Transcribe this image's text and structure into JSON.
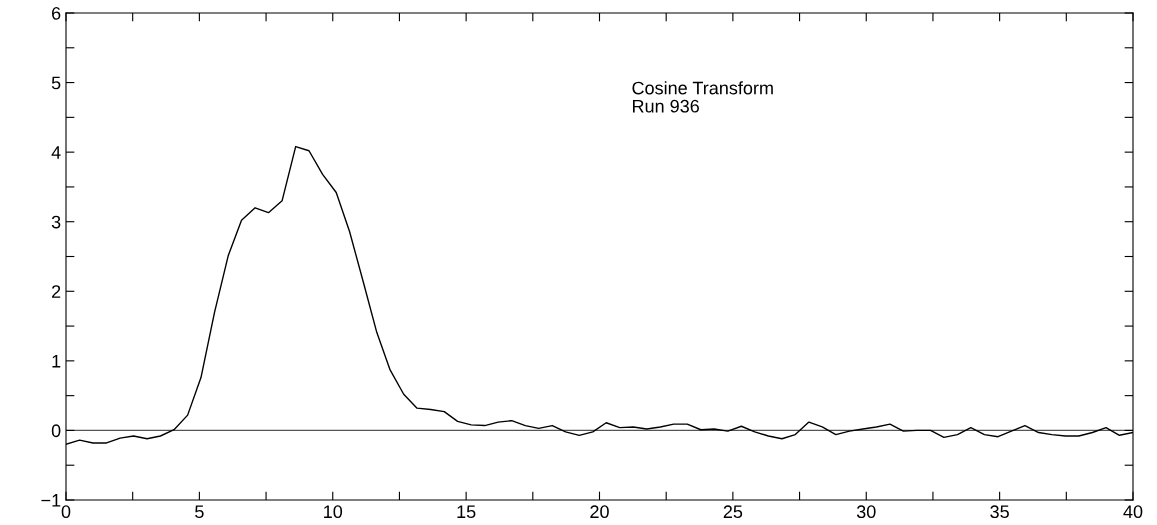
{
  "chart_data": {
    "type": "line",
    "x": [
      0,
      0.51,
      1.01,
      1.52,
      2.03,
      2.53,
      3.04,
      3.54,
      4.05,
      4.56,
      5.06,
      5.57,
      6.08,
      6.58,
      7.09,
      7.59,
      8.1,
      8.61,
      9.11,
      9.62,
      10.13,
      10.63,
      11.14,
      11.65,
      12.15,
      12.66,
      13.16,
      13.67,
      14.18,
      14.68,
      15.19,
      15.7,
      16.2,
      16.71,
      17.22,
      17.72,
      18.23,
      18.73,
      19.24,
      19.75,
      20.25,
      20.76,
      21.27,
      21.77,
      22.28,
      22.78,
      23.29,
      23.8,
      24.3,
      24.81,
      25.32,
      25.82,
      26.33,
      26.84,
      27.34,
      27.85,
      28.35,
      28.86,
      29.37,
      29.87,
      30.38,
      30.89,
      31.39,
      31.9,
      32.41,
      32.91,
      33.42,
      33.92,
      34.43,
      34.94,
      35.44,
      35.95,
      36.46,
      36.96,
      37.47,
      37.97,
      38.48,
      38.99,
      39.49,
      40
    ],
    "series": [
      {
        "color": "#000000",
        "values": [
          -0.2,
          -0.14,
          -0.18,
          -0.18,
          -0.11,
          -0.08,
          -0.12,
          -0.08,
          0.01,
          0.22,
          0.76,
          1.7,
          2.51,
          3.02,
          3.2,
          3.13,
          3.3,
          4.08,
          4.02,
          3.68,
          3.42,
          2.86,
          2.14,
          1.41,
          0.87,
          0.52,
          0.32,
          0.3,
          0.27,
          0.13,
          0.08,
          0.07,
          0.12,
          0.14,
          0.07,
          0.03,
          0.07,
          -0.02,
          -0.07,
          -0.02,
          0.11,
          0.04,
          0.05,
          0.02,
          0.05,
          0.09,
          0.09,
          0.01,
          0.02,
          -0.01,
          0.06,
          -0.02,
          -0.08,
          -0.12,
          -0.06,
          0.12,
          0.05,
          -0.06,
          -0.01,
          0.02,
          0.05,
          0.09,
          -0.01,
          0.0,
          0.0,
          -0.1,
          -0.06,
          0.04,
          -0.06,
          -0.09,
          -0.01,
          0.07,
          -0.03,
          -0.06,
          -0.08,
          -0.08,
          -0.03,
          0.04,
          -0.07,
          -0.03
        ]
      }
    ],
    "xlim": [
      0,
      40
    ],
    "xticks": [
      0,
      {
        "value": 2.5,
        "label": null
      },
      5,
      {
        "value": 7.5,
        "label": null
      },
      10,
      {
        "value": 12.5,
        "label": null
      },
      15,
      {
        "value": 17.5,
        "label": null
      },
      20,
      {
        "value": 22.5,
        "label": null
      },
      25,
      {
        "value": 27.5,
        "label": null
      },
      30,
      {
        "value": 32.5,
        "label": null
      },
      35,
      {
        "value": 37.5,
        "label": null
      },
      40
    ],
    "ylim": [
      -1,
      6
    ],
    "yticks": [
      {
        "value": -1,
        "label": "−1"
      },
      {
        "value": -0.5,
        "label": null
      },
      0,
      {
        "value": 0.5,
        "label": null
      },
      1,
      {
        "value": 1.5,
        "label": null
      },
      2,
      {
        "value": 2.5,
        "label": null
      },
      3,
      {
        "value": 3.5,
        "label": null
      },
      4,
      {
        "value": 4.5,
        "label": null
      },
      5,
      {
        "value": 5.5,
        "label": null
      },
      6
    ],
    "ref_lines": [
      {
        "axis": "y",
        "value": 0,
        "color": "#555555"
      }
    ],
    "annotations": [
      "Cosine Transform\nRun 936"
    ],
    "grid": false,
    "legend": false,
    "marker": "none",
    "line_style": "solid"
  }
}
